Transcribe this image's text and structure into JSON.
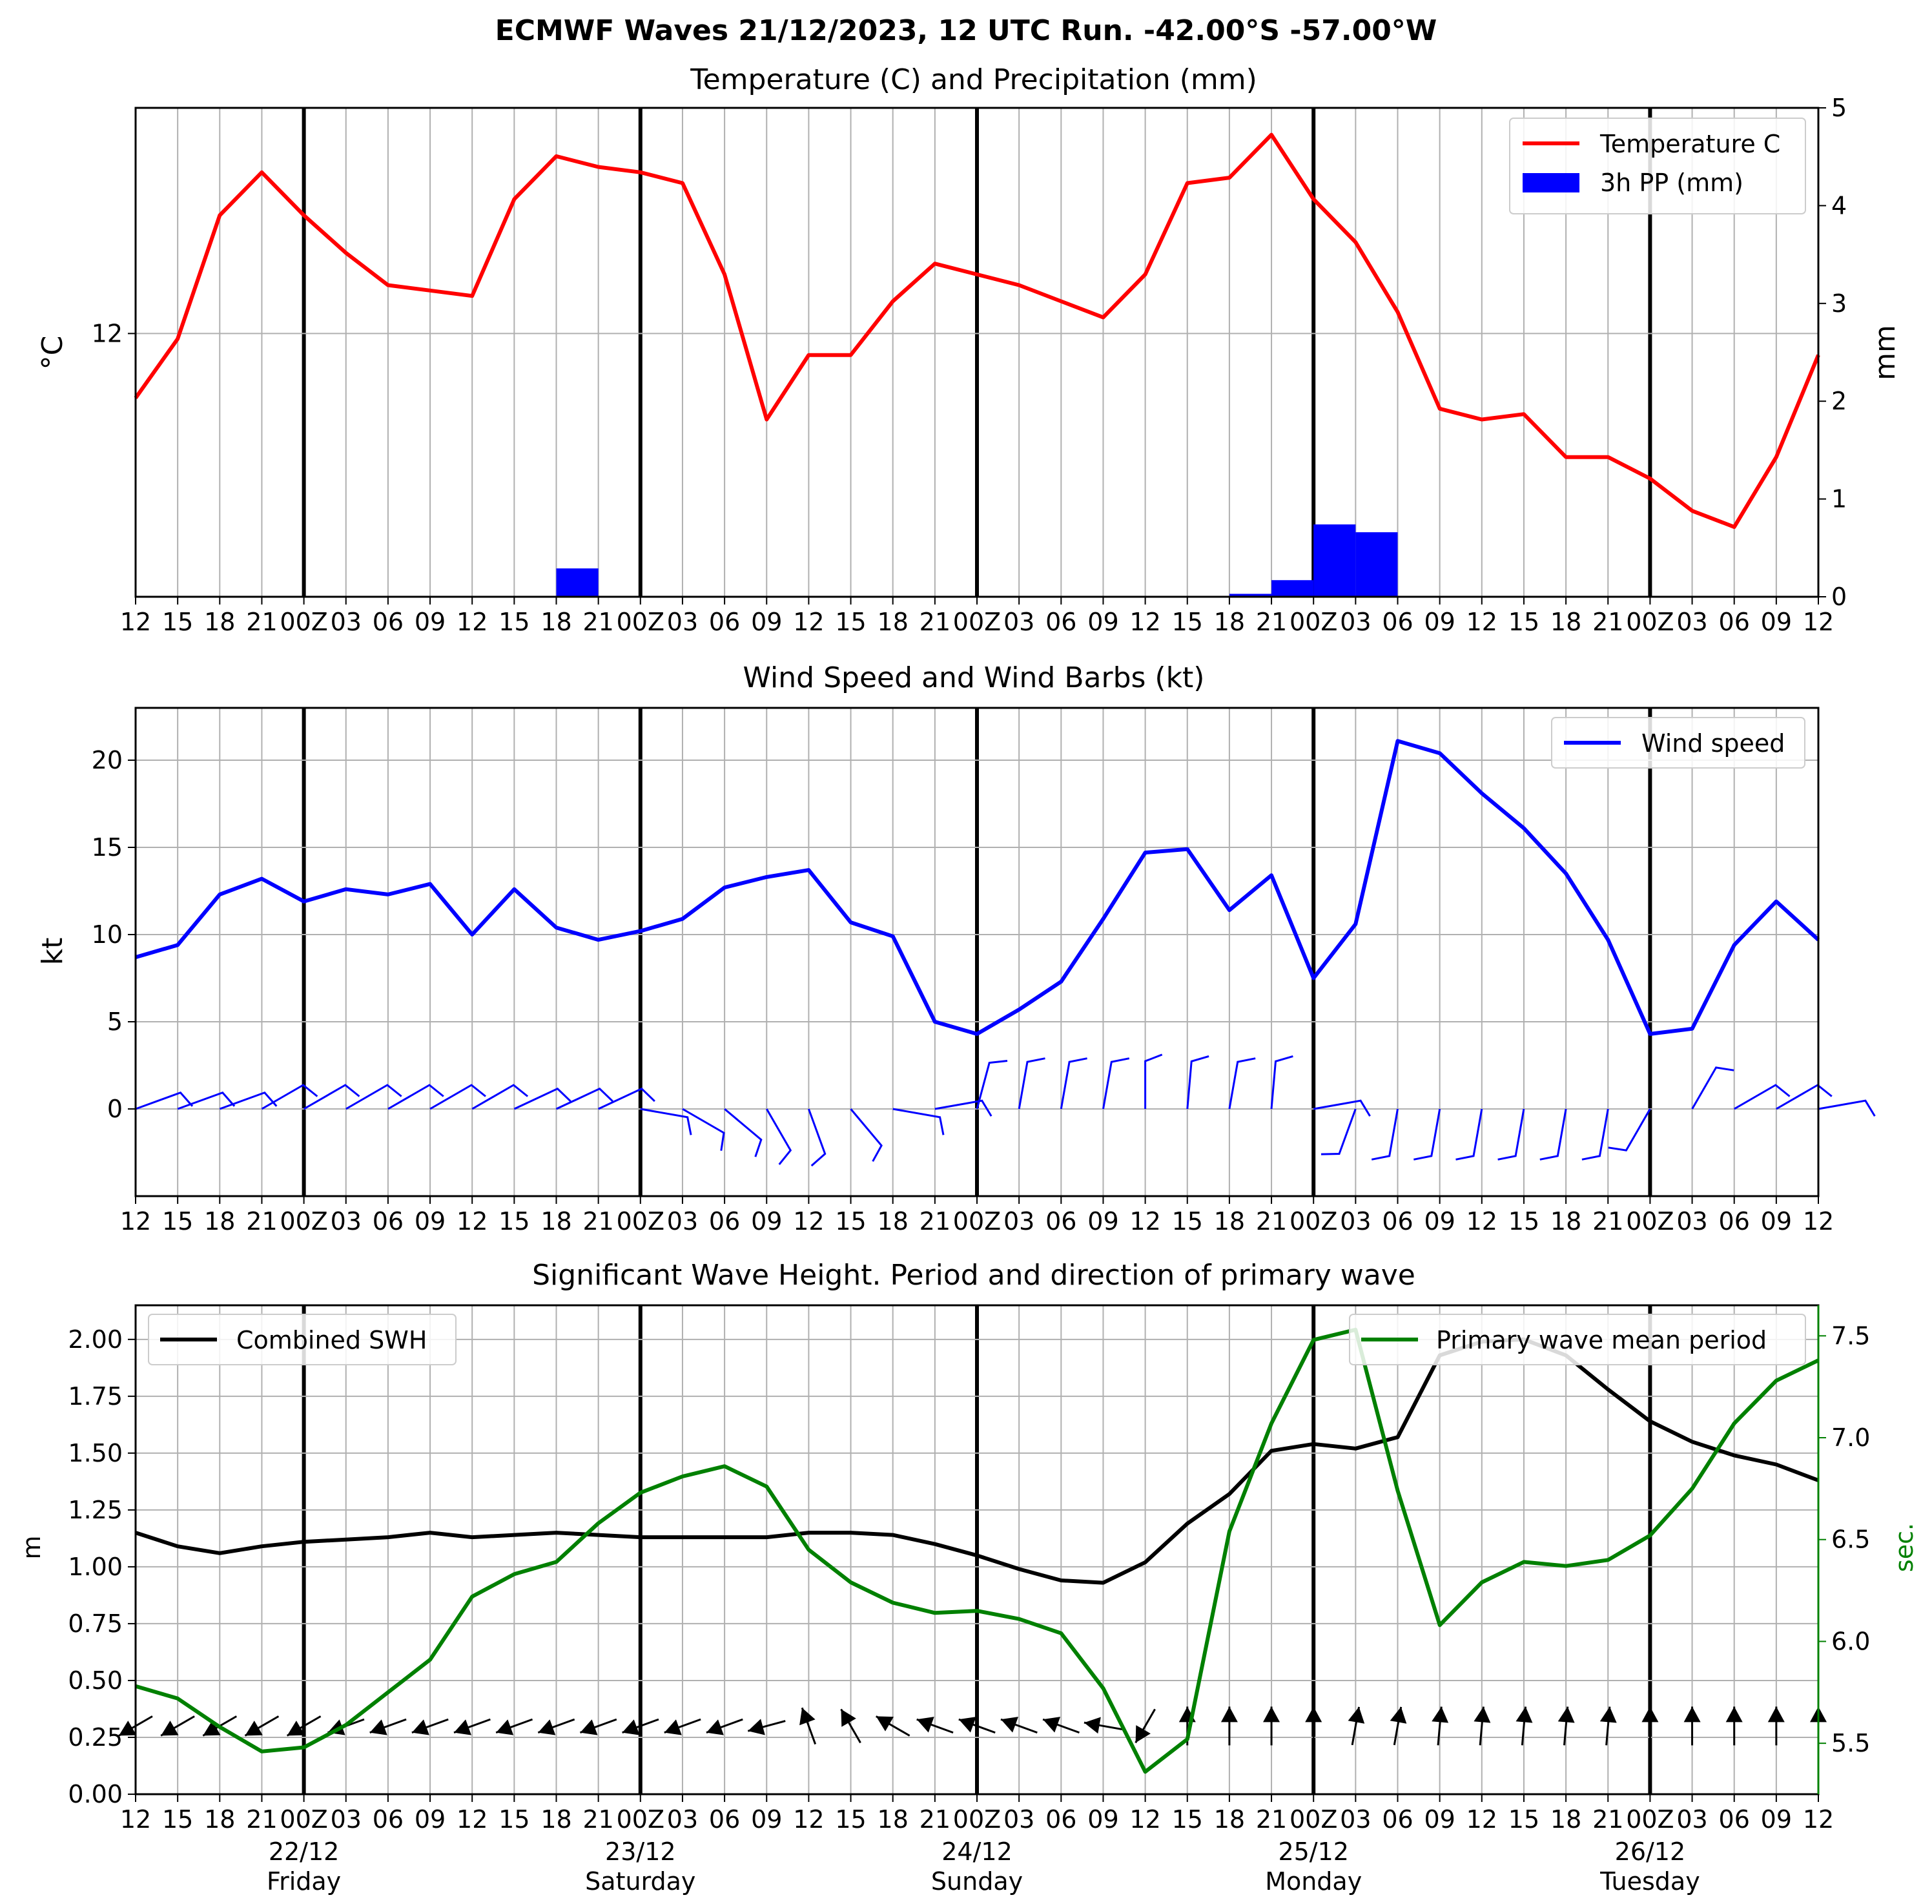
{
  "figure": {
    "title": "ECMWF Waves 21/12/2023, 12 UTC Run. -42.00°S -57.00°W"
  },
  "time_ticks": [
    "12",
    "15",
    "18",
    "21",
    "00Z",
    "03",
    "06",
    "09",
    "12",
    "15",
    "18",
    "21",
    "00Z",
    "03",
    "06",
    "09",
    "12",
    "15",
    "18",
    "21",
    "00Z",
    "03",
    "06",
    "09",
    "12",
    "15",
    "18",
    "21",
    "00Z",
    "03",
    "06",
    "09",
    "12",
    "15",
    "18",
    "21",
    "00Z",
    "03",
    "06",
    "09",
    "12"
  ],
  "day_labels": [
    {
      "date": "22/12",
      "day": "Friday",
      "index": 4
    },
    {
      "date": "23/12",
      "day": "Saturday",
      "index": 12
    },
    {
      "date": "24/12",
      "day": "Sunday",
      "index": 20
    },
    {
      "date": "25/12",
      "day": "Monday",
      "index": 28
    },
    {
      "date": "26/12",
      "day": "Tuesday",
      "index": 36
    }
  ],
  "colors": {
    "temperature": "#ff0000",
    "precip": "#0000ff",
    "wind": "#0000ff",
    "swh": "#000000",
    "period": "#008000",
    "grid": "#b0b0b0",
    "day_line": "#000000"
  },
  "chart_data": [
    {
      "type": "line",
      "title": "Temperature (C) and Precipitation (mm)",
      "ylabel": "$^\\circ$C",
      "y2label": "mm",
      "ylim": [
        7.1,
        16.2
      ],
      "y_ticks": [
        12
      ],
      "y2lim": [
        0,
        5
      ],
      "y2_ticks": [
        0,
        1,
        2,
        3,
        4,
        5
      ],
      "legend_position": "top-right",
      "series": [
        {
          "name": "Temperature C",
          "axis": "left",
          "kind": "line",
          "values": [
            10.8,
            11.9,
            14.2,
            15.0,
            14.2,
            13.5,
            12.9,
            12.8,
            12.7,
            14.5,
            15.3,
            15.1,
            15.0,
            14.8,
            13.1,
            10.4,
            11.6,
            11.6,
            12.6,
            13.3,
            13.1,
            12.9,
            12.6,
            12.3,
            13.1,
            14.8,
            14.9,
            15.7,
            14.5,
            13.7,
            12.4,
            10.6,
            10.4,
            10.5,
            9.7,
            9.7,
            9.3,
            8.7,
            8.4,
            9.7,
            11.6
          ]
        },
        {
          "name": "3h PP (mm)",
          "axis": "right",
          "kind": "bar",
          "values": [
            0,
            0,
            0,
            0,
            0,
            0,
            0,
            0,
            0,
            0,
            0.29,
            0,
            0,
            0,
            0,
            0,
            0,
            0,
            0,
            0,
            0,
            0,
            0,
            0,
            0,
            0,
            0.03,
            0.17,
            0.74,
            0.66,
            0,
            0,
            0,
            0,
            0,
            0,
            0,
            0,
            0,
            0
          ]
        }
      ]
    },
    {
      "type": "line",
      "title": "Wind Speed and Wind Barbs (kt)",
      "ylabel": "kt",
      "ylim": [
        -5,
        23
      ],
      "y_ticks": [
        0,
        5,
        10,
        15,
        20
      ],
      "legend_position": "top-right",
      "series": [
        {
          "name": "Wind speed",
          "values": [
            8.7,
            9.4,
            12.3,
            13.2,
            11.9,
            12.6,
            12.3,
            12.9,
            10.0,
            12.6,
            10.4,
            9.7,
            10.2,
            10.9,
            12.7,
            13.3,
            13.7,
            10.7,
            9.9,
            5.0,
            4.3,
            5.7,
            7.3,
            10.9,
            14.7,
            14.9,
            11.4,
            13.4,
            7.5,
            10.6,
            21.1,
            20.4,
            18.1,
            16.1,
            13.5,
            9.7,
            4.3,
            4.6,
            9.4,
            11.9,
            9.7
          ]
        }
      ],
      "barb_directions_to_deg": [
        70,
        70,
        70,
        60,
        60,
        60,
        60,
        60,
        60,
        65,
        65,
        65,
        100,
        120,
        130,
        150,
        160,
        140,
        100,
        80,
        15,
        10,
        10,
        10,
        0,
        5,
        10,
        5,
        80,
        200,
        190,
        190,
        190,
        190,
        190,
        190,
        210,
        30,
        60,
        60,
        80
      ]
    },
    {
      "type": "line",
      "title": "Significant Wave Height. Period and direction of primary wave",
      "ylabel": "m",
      "y2label": "sec.",
      "ylim": [
        0,
        2.15
      ],
      "y_ticks": [
        0.0,
        0.25,
        0.5,
        0.75,
        1.0,
        1.25,
        1.5,
        1.75,
        2.0
      ],
      "y2lim": [
        5.25,
        7.65
      ],
      "y2_ticks": [
        5.5,
        6.0,
        6.5,
        7.0,
        7.5
      ],
      "series": [
        {
          "name": "Combined SWH",
          "axis": "left",
          "legend_position": "top-left",
          "values": [
            1.15,
            1.09,
            1.06,
            1.09,
            1.11,
            1.12,
            1.13,
            1.15,
            1.13,
            1.14,
            1.15,
            1.14,
            1.13,
            1.13,
            1.13,
            1.13,
            1.15,
            1.15,
            1.14,
            1.1,
            1.05,
            0.99,
            0.94,
            0.93,
            1.02,
            1.19,
            1.32,
            1.51,
            1.54,
            1.52,
            1.57,
            1.93,
            1.99,
            2.0,
            1.93,
            1.78,
            1.64,
            1.55,
            1.49,
            1.45,
            1.38
          ]
        },
        {
          "name": "Primary wave mean period",
          "axis": "right",
          "legend_position": "top-right",
          "values": [
            5.78,
            5.72,
            5.58,
            5.46,
            5.48,
            5.59,
            5.75,
            5.91,
            6.22,
            6.33,
            6.39,
            6.58,
            6.73,
            6.81,
            6.86,
            6.76,
            6.45,
            6.29,
            6.19,
            6.14,
            6.15,
            6.11,
            6.04,
            5.77,
            5.36,
            5.52,
            6.54,
            7.07,
            7.48,
            7.53,
            6.74,
            6.08,
            6.29,
            6.39,
            6.37,
            6.4,
            6.52,
            6.75,
            7.07,
            7.28,
            7.38
          ]
        }
      ],
      "arrow_directions_to_deg": [
        240,
        240,
        240,
        240,
        240,
        250,
        250,
        250,
        250,
        250,
        250,
        250,
        250,
        250,
        250,
        255,
        340,
        330,
        300,
        290,
        290,
        290,
        290,
        280,
        210,
        0,
        0,
        0,
        0,
        10,
        10,
        5,
        5,
        5,
        5,
        5,
        0,
        0,
        0,
        0,
        0
      ]
    }
  ]
}
